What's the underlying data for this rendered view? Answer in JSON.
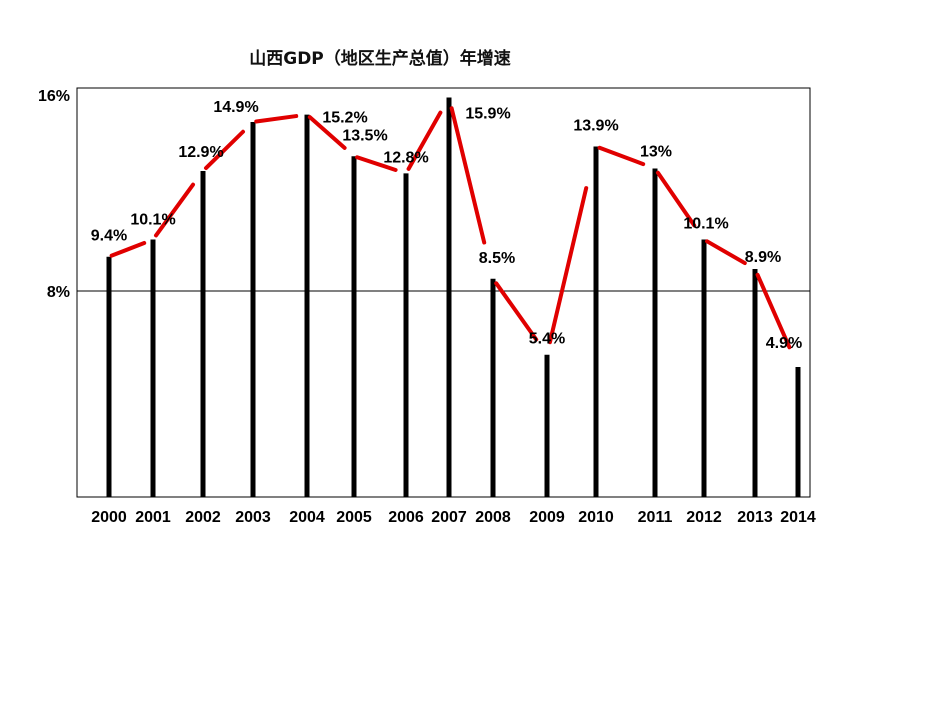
{
  "chart_data": {
    "type": "bar",
    "title": "山西GDP（地区生产总值）年增速",
    "categories": [
      "2000",
      "2001",
      "2002",
      "2003",
      "2004",
      "2005",
      "2006",
      "2007",
      "2008",
      "2009",
      "2010",
      "2011",
      "2012",
      "2013",
      "2014"
    ],
    "values": [
      9.4,
      10.1,
      12.9,
      14.9,
      15.2,
      13.5,
      12.8,
      15.9,
      8.5,
      5.4,
      13.9,
      13,
      10.1,
      8.9,
      4.9
    ],
    "data_labels": [
      "9.4%",
      "10.1%",
      "12.9%",
      "14.9%",
      "15.2%",
      "13.5%",
      "12.8%",
      "15.9%",
      "8.5%",
      "5.4%",
      "13.9%",
      "13%",
      "10.1%",
      "8.9%",
      "4.9%"
    ],
    "y_ticks": [
      {
        "value": 16,
        "label": "16%"
      },
      {
        "value": 8,
        "label": "8%"
      }
    ],
    "gridline_at": 8,
    "xlabel": "",
    "ylabel": "",
    "connector_line": true,
    "colors": {
      "bars": "#000000",
      "connector": "#e00000"
    }
  }
}
